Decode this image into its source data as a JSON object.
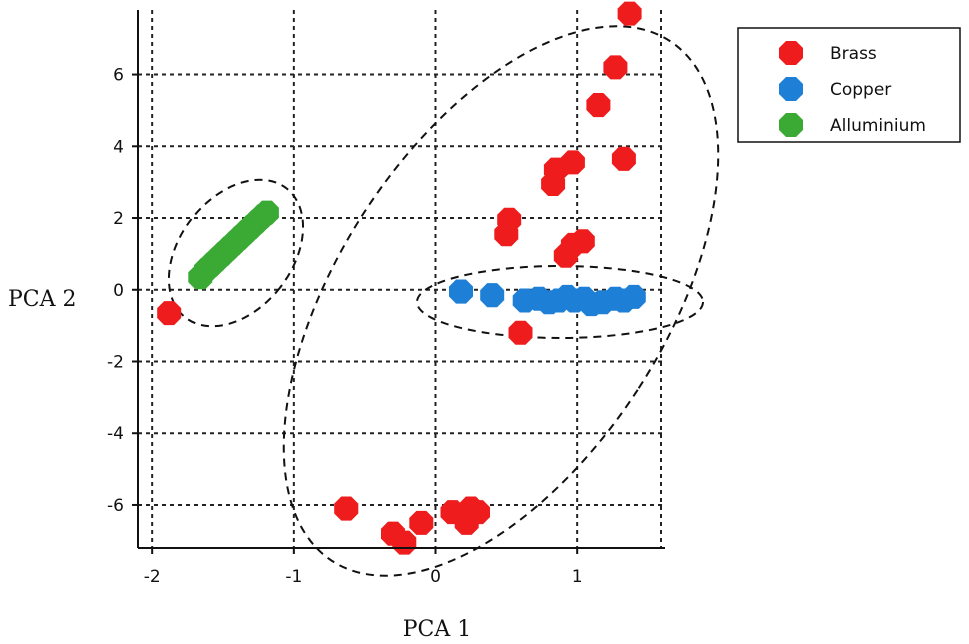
{
  "chart_data": {
    "type": "scatter",
    "xlabel": "PCA 1",
    "ylabel": "PCA 2",
    "xlim": [
      -2.1,
      1.62
    ],
    "ylim": [
      -7.2,
      7.8
    ],
    "xticks": [
      -2,
      -1,
      0,
      1
    ],
    "yticks": [
      -6,
      -4,
      -2,
      0,
      2,
      4,
      6
    ],
    "grid": true,
    "legend_position": "top-right, outside plot",
    "marker_shape": "octagon",
    "series": [
      {
        "name": "Brass",
        "color": "#ee1c1c",
        "points": [
          [
            1.37,
            7.7
          ],
          [
            1.27,
            6.2
          ],
          [
            1.15,
            5.15
          ],
          [
            1.33,
            3.65
          ],
          [
            0.97,
            3.55
          ],
          [
            0.85,
            3.35
          ],
          [
            0.83,
            2.95
          ],
          [
            0.52,
            1.95
          ],
          [
            0.5,
            1.55
          ],
          [
            0.97,
            1.25
          ],
          [
            1.04,
            1.35
          ],
          [
            0.92,
            0.95
          ],
          [
            -1.88,
            -0.65
          ],
          [
            0.6,
            -1.2
          ],
          [
            -0.63,
            -6.1
          ],
          [
            -0.3,
            -6.8
          ],
          [
            -0.22,
            -7.05
          ],
          [
            -0.1,
            -6.5
          ],
          [
            0.12,
            -6.2
          ],
          [
            0.22,
            -6.5
          ],
          [
            0.25,
            -6.1
          ],
          [
            0.3,
            -6.2
          ]
        ]
      },
      {
        "name": "Copper",
        "color": "#1e7fd6",
        "points": [
          [
            0.18,
            -0.05
          ],
          [
            0.4,
            -0.15
          ],
          [
            0.63,
            -0.3
          ],
          [
            0.73,
            -0.25
          ],
          [
            0.8,
            -0.35
          ],
          [
            0.87,
            -0.3
          ],
          [
            0.93,
            -0.2
          ],
          [
            0.98,
            -0.3
          ],
          [
            1.05,
            -0.25
          ],
          [
            1.1,
            -0.4
          ],
          [
            1.18,
            -0.35
          ],
          [
            1.27,
            -0.25
          ],
          [
            1.33,
            -0.3
          ],
          [
            1.4,
            -0.2
          ]
        ]
      },
      {
        "name": "Alluminium",
        "color": "#3aaa35",
        "points": [
          [
            -1.66,
            0.35
          ],
          [
            -1.62,
            0.55
          ],
          [
            -1.58,
            0.7
          ],
          [
            -1.54,
            0.85
          ],
          [
            -1.5,
            1.0
          ],
          [
            -1.46,
            1.15
          ],
          [
            -1.42,
            1.3
          ],
          [
            -1.38,
            1.45
          ],
          [
            -1.34,
            1.6
          ],
          [
            -1.3,
            1.75
          ],
          [
            -1.26,
            1.9
          ],
          [
            -1.22,
            2.05
          ],
          [
            -1.19,
            2.15
          ]
        ]
      }
    ]
  }
}
